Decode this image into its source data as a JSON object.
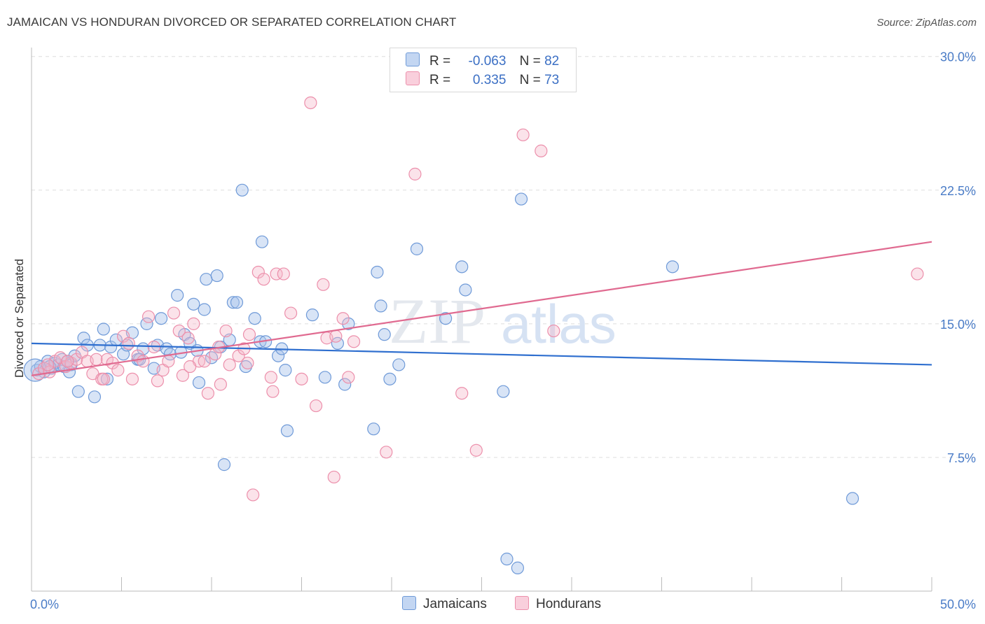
{
  "header": {
    "title": "JAMAICAN VS HONDURAN DIVORCED OR SEPARATED CORRELATION CHART",
    "source": "Source: ZipAtlas.com"
  },
  "watermark": {
    "zip": "ZIP",
    "atlas": "atlas"
  },
  "legend": {
    "rows": [
      {
        "r_label": "R =",
        "r_value": "-0.063",
        "n_label": "N =",
        "n_value": "82",
        "color": "#a8c4ec"
      },
      {
        "r_label": "R =",
        "r_value": "0.335",
        "n_label": "N =",
        "n_value": "73",
        "color": "#f6b8ca"
      }
    ]
  },
  "bottom_legend": {
    "jamaicans": "Jamaicans",
    "hondurans": "Hondurans"
  },
  "colors": {
    "jamaicans_fill": "#a8c4ec",
    "jamaicans_stroke": "#6f9ad8",
    "jamaicans_line": "#2f6fcf",
    "hondurans_fill": "#f6b8ca",
    "hondurans_stroke": "#ec8fab",
    "hondurans_line": "#e06a90",
    "tick_color": "#4a7cc7",
    "grid": "#dddddd"
  },
  "chart_data": {
    "type": "scatter",
    "title": "JAMAICAN VS HONDURAN DIVORCED OR SEPARATED CORRELATION CHART",
    "ylabel": "Divorced or Separated",
    "xlabel": "",
    "xlim": [
      0,
      50
    ],
    "ylim": [
      0,
      30.5
    ],
    "x_tick_labels": [
      "0.0%",
      "50.0%"
    ],
    "y_ticks": [
      7.5,
      15.0,
      22.5,
      30.0
    ],
    "y_tick_labels": [
      "7.5%",
      "15.0%",
      "22.5%",
      "30.0%"
    ],
    "grid": "horizontal dashed",
    "legend_position": "top-center",
    "series": [
      {
        "name": "Jamaicans",
        "r": -0.063,
        "n": 82,
        "trend": {
          "x": [
            0,
            50
          ],
          "y": [
            13.9,
            12.7
          ]
        },
        "points": [
          [
            0.3,
            12.4
          ],
          [
            0.5,
            12.6
          ],
          [
            0.7,
            12.3
          ],
          [
            0.9,
            12.9
          ],
          [
            1.1,
            12.5
          ],
          [
            1.3,
            12.8
          ],
          [
            1.5,
            12.7
          ],
          [
            1.7,
            13.0
          ],
          [
            1.8,
            12.6
          ],
          [
            2.0,
            12.9
          ],
          [
            2.2,
            12.7
          ],
          [
            2.4,
            13.2
          ],
          [
            2.6,
            11.2
          ],
          [
            2.9,
            14.2
          ],
          [
            3.1,
            13.8
          ],
          [
            3.5,
            10.9
          ],
          [
            3.8,
            13.8
          ],
          [
            4.0,
            14.7
          ],
          [
            4.2,
            11.9
          ],
          [
            4.4,
            13.7
          ],
          [
            4.7,
            14.1
          ],
          [
            5.1,
            13.3
          ],
          [
            5.3,
            13.8
          ],
          [
            5.6,
            14.5
          ],
          [
            5.9,
            13.0
          ],
          [
            6.2,
            13.6
          ],
          [
            6.4,
            15.0
          ],
          [
            6.8,
            12.5
          ],
          [
            7.0,
            13.8
          ],
          [
            7.2,
            15.3
          ],
          [
            7.5,
            13.6
          ],
          [
            7.7,
            13.3
          ],
          [
            8.1,
            16.6
          ],
          [
            8.3,
            13.4
          ],
          [
            8.5,
            14.4
          ],
          [
            8.8,
            13.9
          ],
          [
            9.0,
            16.1
          ],
          [
            9.3,
            11.7
          ],
          [
            9.6,
            15.8
          ],
          [
            9.7,
            17.5
          ],
          [
            10.0,
            13.1
          ],
          [
            10.3,
            17.7
          ],
          [
            10.5,
            13.7
          ],
          [
            10.7,
            7.1
          ],
          [
            11.0,
            14.1
          ],
          [
            11.2,
            16.2
          ],
          [
            11.4,
            16.2
          ],
          [
            11.7,
            22.5
          ],
          [
            11.9,
            12.6
          ],
          [
            12.4,
            15.3
          ],
          [
            12.7,
            14.0
          ],
          [
            12.8,
            19.6
          ],
          [
            13.0,
            14.0
          ],
          [
            13.7,
            13.2
          ],
          [
            13.9,
            13.6
          ],
          [
            14.1,
            12.4
          ],
          [
            14.2,
            9.0
          ],
          [
            15.6,
            15.5
          ],
          [
            16.3,
            12.0
          ],
          [
            17.0,
            13.9
          ],
          [
            17.4,
            11.6
          ],
          [
            17.6,
            15.0
          ],
          [
            19.0,
            9.1
          ],
          [
            19.2,
            17.9
          ],
          [
            19.4,
            16.0
          ],
          [
            19.6,
            14.4
          ],
          [
            19.9,
            11.9
          ],
          [
            20.4,
            12.7
          ],
          [
            21.4,
            19.2
          ],
          [
            23.0,
            15.3
          ],
          [
            23.9,
            18.2
          ],
          [
            24.1,
            16.9
          ],
          [
            26.2,
            11.2
          ],
          [
            27.2,
            22.0
          ],
          [
            26.4,
            1.8
          ],
          [
            27.0,
            1.3
          ],
          [
            35.6,
            18.2
          ],
          [
            45.6,
            5.2
          ],
          [
            1.0,
            12.6
          ],
          [
            2.1,
            12.3
          ],
          [
            6.0,
            13.0
          ],
          [
            9.2,
            13.5
          ]
        ]
      },
      {
        "name": "Hondurans",
        "r": 0.335,
        "n": 73,
        "trend": {
          "x": [
            0,
            50
          ],
          "y": [
            12.1,
            19.6
          ]
        },
        "points": [
          [
            0.4,
            12.2
          ],
          [
            0.7,
            12.5
          ],
          [
            1.0,
            12.3
          ],
          [
            1.3,
            12.9
          ],
          [
            1.6,
            13.1
          ],
          [
            1.9,
            12.6
          ],
          [
            2.2,
            12.8
          ],
          [
            2.5,
            13.0
          ],
          [
            2.8,
            13.4
          ],
          [
            3.1,
            12.9
          ],
          [
            3.4,
            12.2
          ],
          [
            3.6,
            13.0
          ],
          [
            3.9,
            11.9
          ],
          [
            4.2,
            13.0
          ],
          [
            4.5,
            12.8
          ],
          [
            4.8,
            12.4
          ],
          [
            5.1,
            14.3
          ],
          [
            5.4,
            13.9
          ],
          [
            5.6,
            11.9
          ],
          [
            5.9,
            13.2
          ],
          [
            6.2,
            12.9
          ],
          [
            6.5,
            15.4
          ],
          [
            6.8,
            13.7
          ],
          [
            7.0,
            11.8
          ],
          [
            7.3,
            12.4
          ],
          [
            7.6,
            12.9
          ],
          [
            7.9,
            15.6
          ],
          [
            8.2,
            14.6
          ],
          [
            8.4,
            12.1
          ],
          [
            8.7,
            14.2
          ],
          [
            9.0,
            15.0
          ],
          [
            9.3,
            12.9
          ],
          [
            9.6,
            12.9
          ],
          [
            9.8,
            11.1
          ],
          [
            10.2,
            13.3
          ],
          [
            10.5,
            11.6
          ],
          [
            10.8,
            14.6
          ],
          [
            11.0,
            12.7
          ],
          [
            11.5,
            13.2
          ],
          [
            11.8,
            13.6
          ],
          [
            12.1,
            14.4
          ],
          [
            12.3,
            5.4
          ],
          [
            12.6,
            17.9
          ],
          [
            12.9,
            17.5
          ],
          [
            13.3,
            12.0
          ],
          [
            13.4,
            11.2
          ],
          [
            13.6,
            17.8
          ],
          [
            14.0,
            17.8
          ],
          [
            14.4,
            15.6
          ],
          [
            15.0,
            11.9
          ],
          [
            15.5,
            27.4
          ],
          [
            15.8,
            10.4
          ],
          [
            16.2,
            17.2
          ],
          [
            16.4,
            14.2
          ],
          [
            16.8,
            6.4
          ],
          [
            16.9,
            14.3
          ],
          [
            17.3,
            15.3
          ],
          [
            17.6,
            12.0
          ],
          [
            17.9,
            14.0
          ],
          [
            19.7,
            7.8
          ],
          [
            21.3,
            23.4
          ],
          [
            23.9,
            11.1
          ],
          [
            24.7,
            7.9
          ],
          [
            27.3,
            25.6
          ],
          [
            28.3,
            24.7
          ],
          [
            29.0,
            14.6
          ],
          [
            49.2,
            17.8
          ],
          [
            0.9,
            12.7
          ],
          [
            2.0,
            12.9
          ],
          [
            4.0,
            11.9
          ],
          [
            8.8,
            12.6
          ],
          [
            10.4,
            13.7
          ],
          [
            12.0,
            12.8
          ]
        ]
      }
    ]
  }
}
